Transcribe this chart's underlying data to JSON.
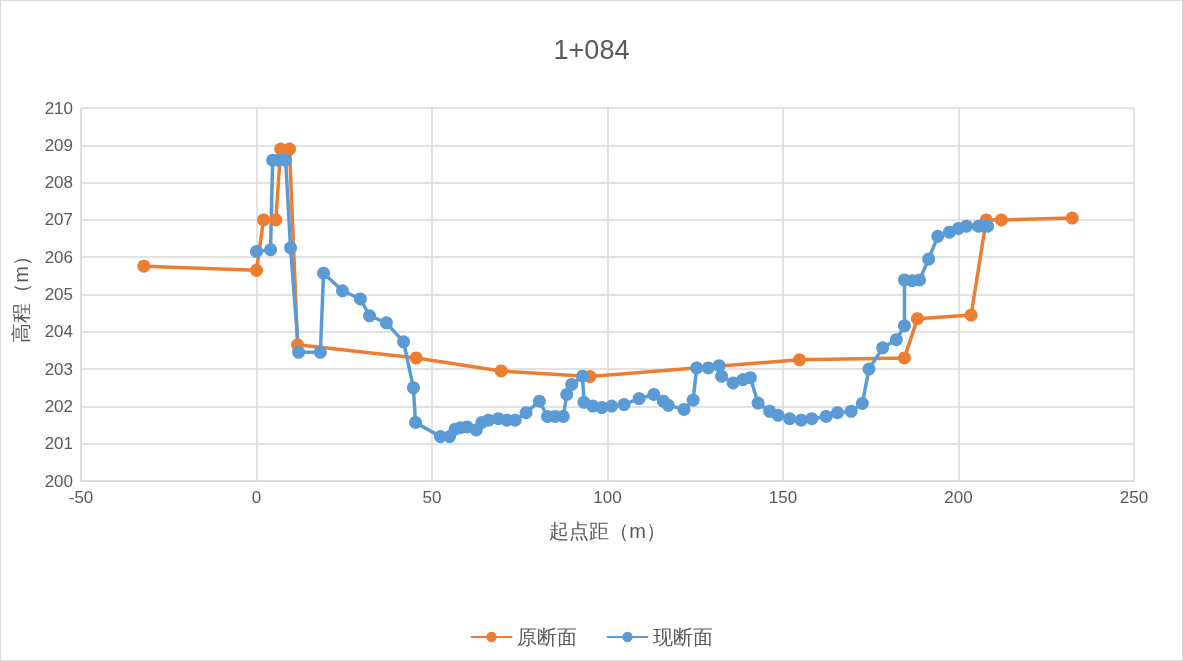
{
  "chart_data": {
    "type": "line",
    "title": "1+084",
    "xlabel": "起点距（m）",
    "ylabel": "高程（m）",
    "xlim": [
      -50,
      250
    ],
    "xticks": [
      -50,
      0,
      50,
      100,
      150,
      200,
      250
    ],
    "ylim": [
      200,
      210
    ],
    "yticks": [
      200,
      201,
      202,
      203,
      204,
      205,
      206,
      207,
      208,
      209,
      210
    ],
    "grid": true,
    "legend": "bottom",
    "marker": "circle",
    "line_style": "solid",
    "series": [
      {
        "name": "原断面",
        "color": "#ed7d31",
        "x": [
          -32.1,
          0,
          2,
          5.5,
          6.9,
          9.4,
          11.7,
          45.5,
          69.7,
          95,
          154.7,
          184.6,
          188.3,
          203.6,
          207.9,
          212.2,
          232.4
        ],
        "values": [
          205.76,
          205.65,
          207,
          207,
          208.9,
          208.9,
          203.65,
          203.3,
          202.95,
          202.8,
          203.25,
          203.3,
          204.35,
          204.45,
          207,
          207,
          207.05
        ]
      },
      {
        "name": "现断面",
        "color": "#5b9bd5",
        "x": [
          0,
          4,
          4.6,
          6.3,
          8.3,
          9.7,
          12,
          18.2,
          19.1,
          24.5,
          29.6,
          32.2,
          37,
          41.9,
          44.7,
          45.3,
          52.4,
          55,
          56.6,
          58.1,
          60,
          62.6,
          64.2,
          66.1,
          68.9,
          71.3,
          73.7,
          76.8,
          80.6,
          82.9,
          85.1,
          87.4,
          88.4,
          89.8,
          92.9,
          93.3,
          95.8,
          98.4,
          101.2,
          104.7,
          109,
          113.2,
          115.9,
          117.3,
          121.8,
          124.4,
          125.4,
          128.7,
          131.8,
          132.5,
          135.8,
          138.6,
          140.7,
          142.9,
          146.2,
          148.6,
          151.9,
          155.2,
          158.2,
          162.3,
          165.5,
          169.4,
          172.6,
          174.5,
          178.4,
          182.3,
          184.6,
          184.6,
          186.8,
          188.9,
          191.5,
          194.1,
          197.4,
          200,
          202.3,
          205.7,
          207.3,
          208.3
        ],
        "values": [
          206.15,
          206.2,
          208.6,
          208.6,
          208.6,
          206.25,
          203.45,
          203.45,
          205.57,
          205.1,
          204.88,
          204.43,
          204.24,
          203.73,
          202.5,
          201.57,
          201.19,
          201.19,
          201.39,
          201.43,
          201.45,
          201.37,
          201.57,
          201.63,
          201.67,
          201.63,
          201.63,
          201.83,
          202.14,
          201.73,
          201.73,
          201.73,
          202.32,
          202.59,
          202.81,
          202.11,
          202.01,
          201.97,
          202.01,
          202.05,
          202.21,
          202.32,
          202.14,
          202.03,
          201.92,
          202.17,
          203.03,
          203.03,
          203.09,
          202.81,
          202.63,
          202.72,
          202.77,
          202.09,
          201.87,
          201.76,
          201.67,
          201.63,
          201.67,
          201.73,
          201.83,
          201.87,
          202.08,
          203,
          203.57,
          203.79,
          204.16,
          205.39,
          205.37,
          205.39,
          205.95,
          206.56,
          206.67,
          206.77,
          206.83,
          206.83,
          206.83,
          206.83
        ]
      }
    ]
  }
}
